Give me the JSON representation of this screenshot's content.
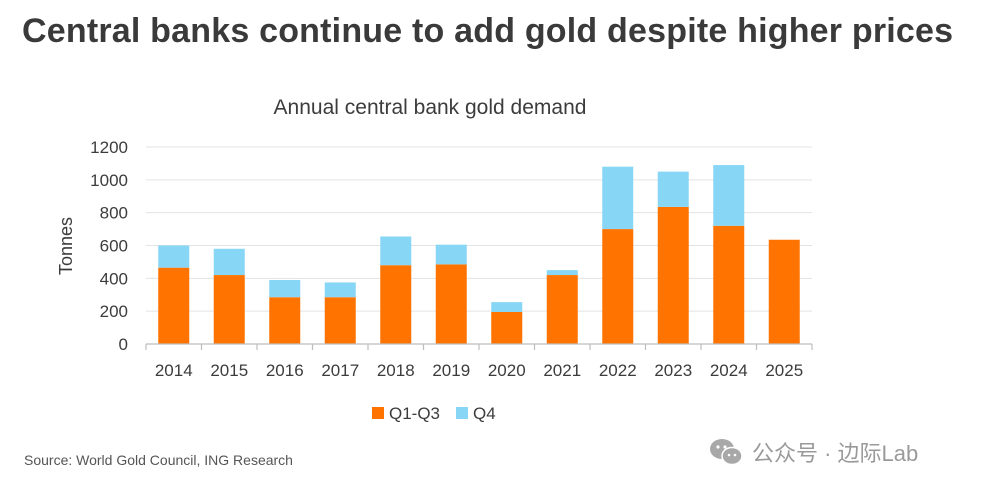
{
  "headline": "Central banks continue to add gold despite higher prices",
  "source": "Source: World Gold Council, ING Research",
  "watermark": {
    "icon": "wechat-icon",
    "text": "公众号 · 边际Lab"
  },
  "colors": {
    "q1q3": "#ff7300",
    "q4": "#87d6f5",
    "grid": "#e3e3e3",
    "axis_text": "#3c3c3c"
  },
  "chart_data": {
    "type": "bar",
    "stacked": true,
    "title": "Annual central bank gold demand",
    "xlabel": "",
    "ylabel": "Tonnes",
    "ylim": [
      0,
      1200
    ],
    "yticks": [
      0,
      200,
      400,
      600,
      800,
      1000,
      1200
    ],
    "categories": [
      "2014",
      "2015",
      "2016",
      "2017",
      "2018",
      "2019",
      "2020",
      "2021",
      "2022",
      "2023",
      "2024",
      "2025"
    ],
    "series": [
      {
        "name": "Q1-Q3",
        "values": [
          465,
          420,
          285,
          285,
          480,
          485,
          195,
          420,
          700,
          835,
          720,
          635
        ]
      },
      {
        "name": "Q4",
        "values": [
          135,
          160,
          105,
          90,
          175,
          120,
          60,
          30,
          380,
          215,
          370,
          0
        ]
      }
    ],
    "legend_position": "bottom",
    "grid": true
  }
}
